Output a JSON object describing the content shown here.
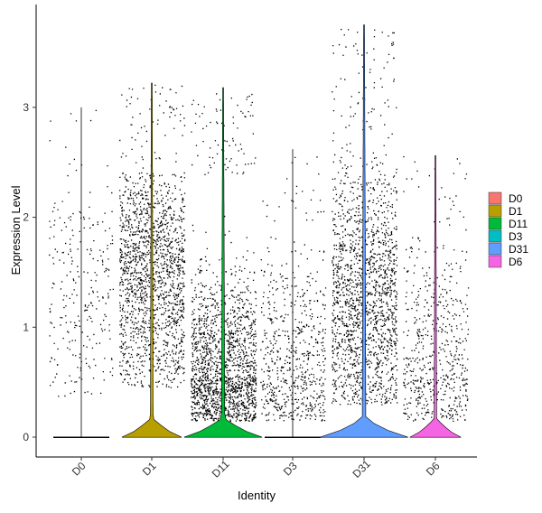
{
  "chart_data": {
    "type": "violin",
    "xlabel": "Identity",
    "ylabel": "Expression Level",
    "categories": [
      "D0",
      "D1",
      "D11",
      "D3",
      "D31",
      "D6"
    ],
    "colors": [
      "#F8766D",
      "#B79F00",
      "#00BA38",
      "#00BFC4",
      "#619CFF",
      "#F564E3"
    ],
    "ylim": [
      -0.2,
      3.8
    ],
    "yticks": [
      0,
      1,
      2,
      3
    ],
    "ytick_labels": [
      "0",
      "1",
      "2",
      "3"
    ],
    "y_max_per_group": [
      3.0,
      3.22,
      3.18,
      2.62,
      3.75,
      2.56
    ],
    "violin_peak_width": [
      0.0,
      0.42,
      0.55,
      0.0,
      0.62,
      0.36
    ],
    "legend": {
      "position": "right",
      "entries": [
        "D0",
        "D1",
        "D11",
        "D3",
        "D31",
        "D6"
      ]
    },
    "grid": false
  }
}
